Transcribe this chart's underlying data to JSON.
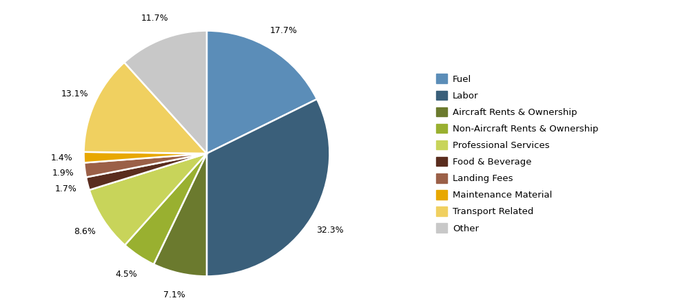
{
  "labels": [
    "Fuel",
    "Labor",
    "Aircraft Rents & Ownership",
    "Non-Aircraft Rents & Ownership",
    "Professional Services",
    "Food & Beverage",
    "Landing Fees",
    "Maintenance Material",
    "Transport Related",
    "Other"
  ],
  "values": [
    17.7,
    32.3,
    7.1,
    4.5,
    8.6,
    1.7,
    1.9,
    1.4,
    13.1,
    11.7
  ],
  "colors": [
    "#5b8db8",
    "#3a5f7a",
    "#6b7a2e",
    "#99b030",
    "#c8d45a",
    "#5a2d1e",
    "#9b6048",
    "#e8a800",
    "#f0d060",
    "#c8c8c8"
  ],
  "startangle": 90,
  "figsize": [
    10.0,
    4.46
  ],
  "dpi": 100,
  "pct_distance": 1.18,
  "legend_labels": [
    "Fuel",
    "Labor",
    "Aircraft Rents & Ownership",
    "Non-Aircraft Rents & Ownership",
    "Professional Services",
    "Food & Beverage",
    "Landing Fees",
    "Maintenance Material",
    "Transport Related",
    "Other"
  ]
}
